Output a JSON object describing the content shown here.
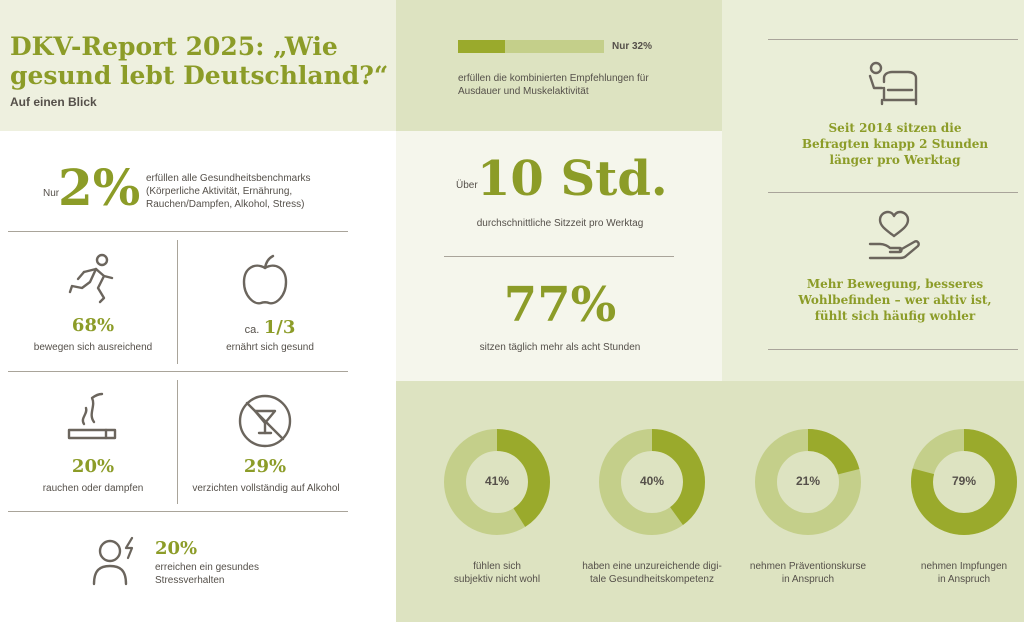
{
  "header": {
    "title_line1": "DKV-Report 2025: „Wie",
    "title_line2": "gesund lebt Deutschland?“",
    "subtitle": "Auf einen Blick"
  },
  "benchmark": {
    "prefix": "Nur",
    "value": "2%",
    "text_line1": "erfüllen alle Gesundheitsbenchmarks",
    "text_line2": "(Körperliche Aktivität, Ernährung,",
    "text_line3": "Rauchen/Dampfen, Alkohol, Stress)"
  },
  "stats": {
    "activity": {
      "value": "68%",
      "label": "bewegen sich ausreichend",
      "icon": "running-person-icon"
    },
    "nutrition": {
      "prefix": "ca.",
      "value": "1/3",
      "label": "ernährt sich gesund",
      "icon": "apple-icon"
    },
    "smoking": {
      "value": "20%",
      "label": "rauchen oder dampfen",
      "icon": "cigarette-icon"
    },
    "alcohol": {
      "value": "29%",
      "label": "verzichten vollständig auf Alkohol",
      "icon": "no-alcohol-icon"
    },
    "stress": {
      "value": "20%",
      "label_line1": "erreichen ein gesundes",
      "label_line2": "Stressverhalten",
      "icon": "stressed-person-icon"
    }
  },
  "exercise_bar": {
    "value_fraction": 0.32,
    "label": "Nur 32%",
    "text_line1": "erfüllen die kombinierten Empfehlungen für",
    "text_line2": "Ausdauer und Muskelaktivität"
  },
  "sitting": {
    "prefix": "Über",
    "value": "10 Std.",
    "label": "durchschnittliche Sitzzeit pro Werktag",
    "pct": "77%",
    "pct_label": "sitzen täglich mehr als acht Stunden"
  },
  "right_panel": {
    "fact1_line1": "Seit 2014 sitzen die",
    "fact1_line2": "Befragten knapp 2 Stunden",
    "fact1_line3": "länger pro Werktag",
    "fact2_line1": "Mehr Bewegung, besseres",
    "fact2_line2": "Wohlbefinden – wer aktiv ist,",
    "fact2_line3": "fühlt sich häufig wohler",
    "icon1": "sofa-person-icon",
    "icon2": "heart-hand-icon"
  },
  "donuts": [
    {
      "value": 41,
      "label": "41%",
      "text_line1": "fühlen sich",
      "text_line2": "subjektiv nicht wohl"
    },
    {
      "value": 40,
      "label": "40%",
      "text_line1": "haben eine unzureichende digi-",
      "text_line2": "tale Gesundheitskompetenz"
    },
    {
      "value": 21,
      "label": "21%",
      "text_line1": "nehmen Präventionskurse",
      "text_line2": "in Anspruch"
    },
    {
      "value": 79,
      "label": "79%",
      "text_line1": "nehmen Impfungen",
      "text_line2": "in Anspruch"
    }
  ],
  "colors": {
    "dark_green": "#8c9c28",
    "light_green": "#c4cf8a",
    "panel_light": "#eef0df",
    "panel_mid": "#dde3c1",
    "panel_pale": "#f3f5e8",
    "text": "#55504a"
  }
}
